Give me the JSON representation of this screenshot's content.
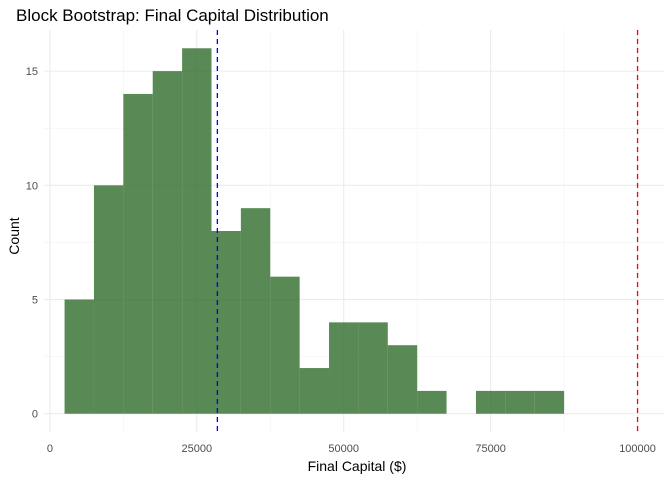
{
  "chart_data": {
    "type": "histogram",
    "title": "Block Bootstrap: Final Capital Distribution",
    "xlabel": "Final Capital ($)",
    "ylabel": "Count",
    "xlim": [
      -1000,
      104500
    ],
    "ylim": [
      -0.8,
      16.8
    ],
    "x_ticks": [
      0,
      25000,
      50000,
      75000,
      100000
    ],
    "x_tick_labels": [
      "0",
      "25000",
      "50000",
      "75000",
      "100000"
    ],
    "y_ticks": [
      0,
      5,
      10,
      15
    ],
    "y_tick_labels": [
      "0",
      "5",
      "10",
      "15"
    ],
    "grid": true,
    "legend": "none",
    "bars": [
      {
        "x0": 2500,
        "x1": 7500,
        "count": 5
      },
      {
        "x0": 7500,
        "x1": 12500,
        "count": 10
      },
      {
        "x0": 12500,
        "x1": 17500,
        "count": 14
      },
      {
        "x0": 17500,
        "x1": 22500,
        "count": 15
      },
      {
        "x0": 22500,
        "x1": 27500,
        "count": 16
      },
      {
        "x0": 27500,
        "x1": 32500,
        "count": 8
      },
      {
        "x0": 32500,
        "x1": 37500,
        "count": 9
      },
      {
        "x0": 37500,
        "x1": 42500,
        "count": 6
      },
      {
        "x0": 42500,
        "x1": 47500,
        "count": 2
      },
      {
        "x0": 47500,
        "x1": 52500,
        "count": 4
      },
      {
        "x0": 52500,
        "x1": 57500,
        "count": 4
      },
      {
        "x0": 57500,
        "x1": 62500,
        "count": 3
      },
      {
        "x0": 62500,
        "x1": 67500,
        "count": 1
      },
      {
        "x0": 67500,
        "x1": 72500,
        "count": 0
      },
      {
        "x0": 72500,
        "x1": 77500,
        "count": 1
      },
      {
        "x0": 77500,
        "x1": 82500,
        "count": 1
      },
      {
        "x0": 82500,
        "x1": 87500,
        "count": 1
      }
    ],
    "reference_lines": [
      {
        "x": 28500,
        "color": "#0000ff",
        "style": "dashed"
      },
      {
        "x": 100000,
        "color": "#ff0000",
        "style": "dashed"
      }
    ],
    "colors": {
      "bar_fill": "#2f6b2a",
      "bar_opacity": 0.8
    }
  }
}
